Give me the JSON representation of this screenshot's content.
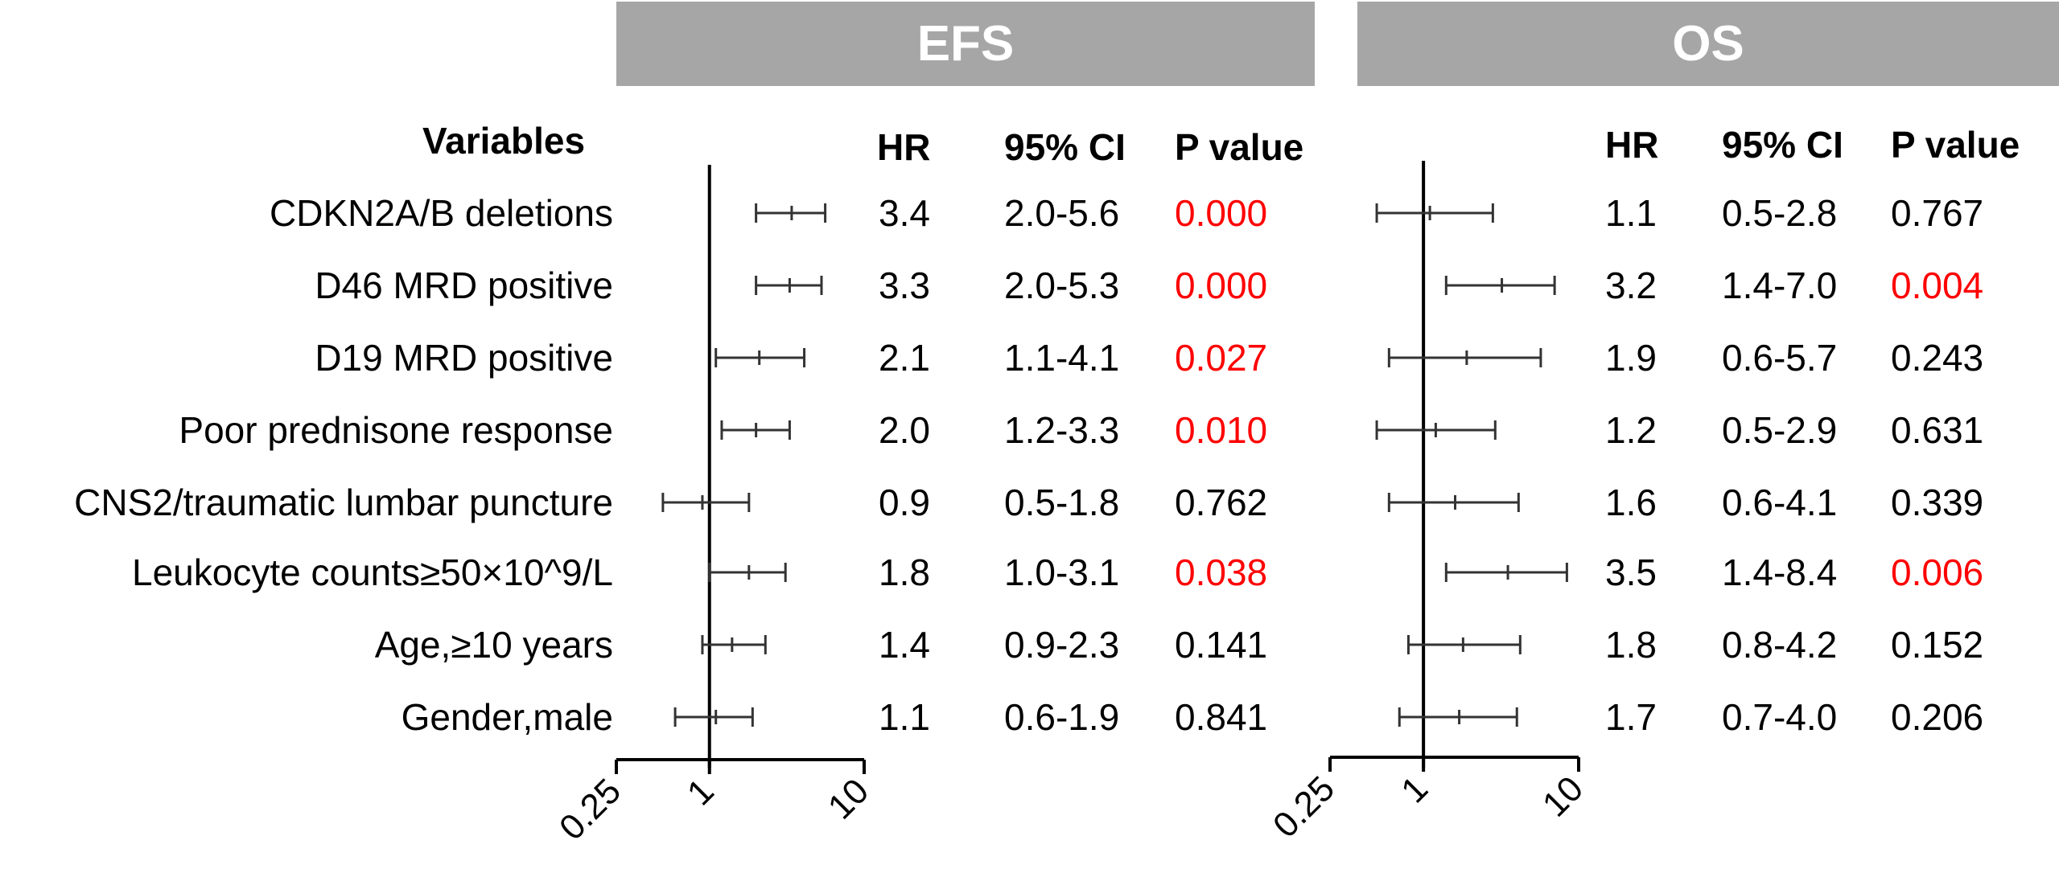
{
  "panels": {
    "efs_title": "EFS",
    "os_title": "OS"
  },
  "columns": {
    "variables": "Variables",
    "hr": "HR",
    "ci": "95% CI",
    "p": "P value"
  },
  "variables": [
    "CDKN2A/B deletions",
    "D46 MRD positive",
    "D19 MRD positive",
    "Poor prednisone response",
    "CNS2/traumatic lumbar puncture",
    "Leukocyte counts≥50×10^9/L",
    "Age,≥10 years",
    "Gender,male"
  ],
  "efs_rows": [
    {
      "hr": "3.4",
      "ci": "2.0-5.6",
      "p": "0.000"
    },
    {
      "hr": "3.3",
      "ci": "2.0-5.3",
      "p": "0.000"
    },
    {
      "hr": "2.1",
      "ci": "1.1-4.1",
      "p": "0.027"
    },
    {
      "hr": "2.0",
      "ci": "1.2-3.3",
      "p": "0.010"
    },
    {
      "hr": "0.9",
      "ci": "0.5-1.8",
      "p": "0.762"
    },
    {
      "hr": "1.8",
      "ci": "1.0-3.1",
      "p": "0.038"
    },
    {
      "hr": "1.4",
      "ci": "0.9-2.3",
      "p": "0.141"
    },
    {
      "hr": "1.1",
      "ci": "0.6-1.9",
      "p": "0.841"
    }
  ],
  "os_rows": [
    {
      "hr": "1.1",
      "ci": "0.5-2.8",
      "p": "0.767"
    },
    {
      "hr": "3.2",
      "ci": "1.4-7.0",
      "p": "0.004"
    },
    {
      "hr": "1.9",
      "ci": "0.6-5.7",
      "p": "0.243"
    },
    {
      "hr": "1.2",
      "ci": "0.5-2.9",
      "p": "0.631"
    },
    {
      "hr": "1.6",
      "ci": "0.6-4.1",
      "p": "0.339"
    },
    {
      "hr": "3.5",
      "ci": "1.4-8.4",
      "p": "0.006"
    },
    {
      "hr": "1.8",
      "ci": "0.8-4.2",
      "p": "0.152"
    },
    {
      "hr": "1.7",
      "ci": "0.7-4.0",
      "p": "0.206"
    }
  ],
  "colors": {
    "header_bg": "#a6a6a6",
    "header_text": "#ffffff",
    "significant": "#ff0000",
    "text": "#000000",
    "line": "#000000",
    "whisker": "#333333"
  },
  "chart_data": [
    {
      "type": "forest",
      "title": "EFS",
      "x_scale": "log",
      "xlim": [
        0.25,
        10
      ],
      "reference_line": 1,
      "ticks": [
        "0.25",
        "1",
        "10"
      ],
      "categories": [
        "CDKN2A/B deletions",
        "D46 MRD positive",
        "D19 MRD positive",
        "Poor prednisone response",
        "CNS2/traumatic lumbar puncture",
        "Leukocyte counts≥50×10^9/L",
        "Age,≥10 years",
        "Gender,male"
      ],
      "hr": [
        3.4,
        3.3,
        2.1,
        2.0,
        0.9,
        1.8,
        1.4,
        1.1
      ],
      "ci_low": [
        2.0,
        2.0,
        1.1,
        1.2,
        0.5,
        1.0,
        0.9,
        0.6
      ],
      "ci_high": [
        5.6,
        5.3,
        4.1,
        3.3,
        1.8,
        3.1,
        2.3,
        1.9
      ],
      "p": [
        "0.000",
        "0.000",
        "0.027",
        "0.010",
        "0.762",
        "0.038",
        "0.141",
        "0.841"
      ]
    },
    {
      "type": "forest",
      "title": "OS",
      "x_scale": "log",
      "xlim": [
        0.25,
        10
      ],
      "reference_line": 1,
      "ticks": [
        "0.25",
        "1",
        "10"
      ],
      "categories": [
        "CDKN2A/B deletions",
        "D46 MRD positive",
        "D19 MRD positive",
        "Poor prednisone response",
        "CNS2/traumatic lumbar puncture",
        "Leukocyte counts≥50×10^9/L",
        "Age,≥10 years",
        "Gender,male"
      ],
      "hr": [
        1.1,
        3.2,
        1.9,
        1.2,
        1.6,
        3.5,
        1.8,
        1.7
      ],
      "ci_low": [
        0.5,
        1.4,
        0.6,
        0.5,
        0.6,
        1.4,
        0.8,
        0.7
      ],
      "ci_high": [
        2.8,
        7.0,
        5.7,
        2.9,
        4.1,
        8.4,
        4.2,
        4.0
      ],
      "p": [
        "0.767",
        "0.004",
        "0.243",
        "0.631",
        "0.339",
        "0.006",
        "0.152",
        "0.206"
      ]
    }
  ]
}
